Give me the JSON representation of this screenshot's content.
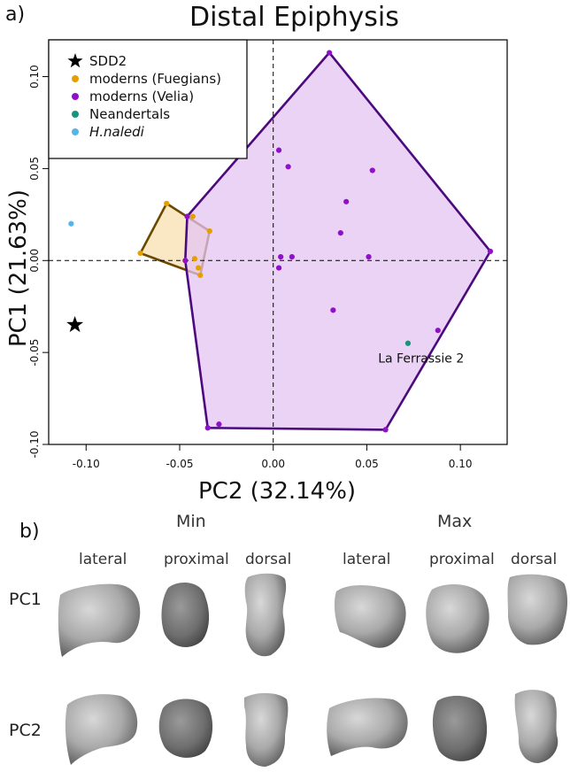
{
  "panel_a_label": "a)",
  "panel_b_label": "b)",
  "chart_data": {
    "type": "scatter",
    "title": "Distal Epiphysis",
    "xlabel": "PC2 (32.14%)",
    "ylabel": "PC1 (21.63%)",
    "xlim": [
      -0.12,
      0.125
    ],
    "ylim": [
      -0.1,
      0.12
    ],
    "xticks": [
      -0.1,
      -0.05,
      0.0,
      0.05,
      0.1
    ],
    "xtick_labels": [
      "-0.10",
      "-0.05",
      "0.00",
      "0.05",
      "0.10"
    ],
    "yticks": [
      -0.1,
      -0.05,
      0.0,
      0.05,
      0.1
    ],
    "ytick_labels": [
      "-0.10",
      "-0.05",
      "0.00",
      "0.05",
      "0.10"
    ],
    "reference_lines": {
      "x": 0,
      "y": 0,
      "style": "dashed"
    },
    "legend_position": "top-left",
    "legend": [
      {
        "label": "SDD2",
        "color": "#000000",
        "marker": "star"
      },
      {
        "label": "moderns (Fuegians)",
        "color": "#E69F00",
        "marker": "circle"
      },
      {
        "label": "moderns (Velia)",
        "color": "#8F10C8",
        "marker": "circle"
      },
      {
        "label": "Neandertals",
        "color": "#13967A",
        "marker": "circle"
      },
      {
        "label": "H.naledi",
        "color": "#56B4E9",
        "marker": "circle",
        "italic": true
      }
    ],
    "series": [
      {
        "name": "SDD2",
        "color": "#000000",
        "marker": "star",
        "points": [
          [
            -0.106,
            -0.035
          ]
        ]
      },
      {
        "name": "moderns (Fuegians)",
        "color": "#E69F00",
        "marker": "circle",
        "hull_fill": "#F8E0B0",
        "hull_stroke": "#6B4A00",
        "points": [
          [
            -0.057,
            0.031
          ],
          [
            -0.034,
            0.016
          ],
          [
            -0.039,
            -0.008
          ],
          [
            -0.071,
            0.004
          ],
          [
            -0.042,
            0.001
          ],
          [
            -0.047,
            0.0
          ],
          [
            -0.043,
            0.024
          ],
          [
            -0.04,
            -0.004
          ]
        ],
        "hull_order": [
          0,
          1,
          2,
          3
        ]
      },
      {
        "name": "moderns (Velia)",
        "color": "#8F10C8",
        "marker": "circle",
        "hull_fill": "#E4C4F2",
        "hull_stroke": "#4B0A7E",
        "points": [
          [
            0.03,
            0.113
          ],
          [
            0.116,
            0.005
          ],
          [
            0.06,
            -0.092
          ],
          [
            -0.035,
            -0.091
          ],
          [
            -0.046,
            0.024
          ],
          [
            0.003,
            0.06
          ],
          [
            0.008,
            0.051
          ],
          [
            0.053,
            0.049
          ],
          [
            0.039,
            0.032
          ],
          [
            0.036,
            0.015
          ],
          [
            0.004,
            0.002
          ],
          [
            0.01,
            0.002
          ],
          [
            0.051,
            0.002
          ],
          [
            0.003,
            -0.004
          ],
          [
            0.032,
            -0.027
          ],
          [
            0.088,
            -0.038
          ],
          [
            -0.029,
            -0.089
          ],
          [
            -0.047,
            0.0
          ]
        ],
        "hull_order": [
          0,
          1,
          2,
          3,
          17,
          4
        ]
      },
      {
        "name": "Neandertals",
        "color": "#13967A",
        "marker": "circle",
        "points": [
          [
            0.072,
            -0.045
          ]
        ]
      },
      {
        "name": "H.naledi",
        "color": "#56B4E9",
        "marker": "circle",
        "points": [
          [
            -0.108,
            0.02
          ]
        ]
      }
    ],
    "annotations": [
      {
        "text": "La Ferrassie 2",
        "x": 0.079,
        "y": -0.053
      }
    ]
  },
  "panel_b": {
    "columns_min": [
      "lateral",
      "proximal",
      "dorsal"
    ],
    "columns_max": [
      "lateral",
      "proximal",
      "dorsal"
    ],
    "group_min_label": "Min",
    "group_max_label": "Max",
    "rows": [
      "PC1",
      "PC2"
    ]
  }
}
